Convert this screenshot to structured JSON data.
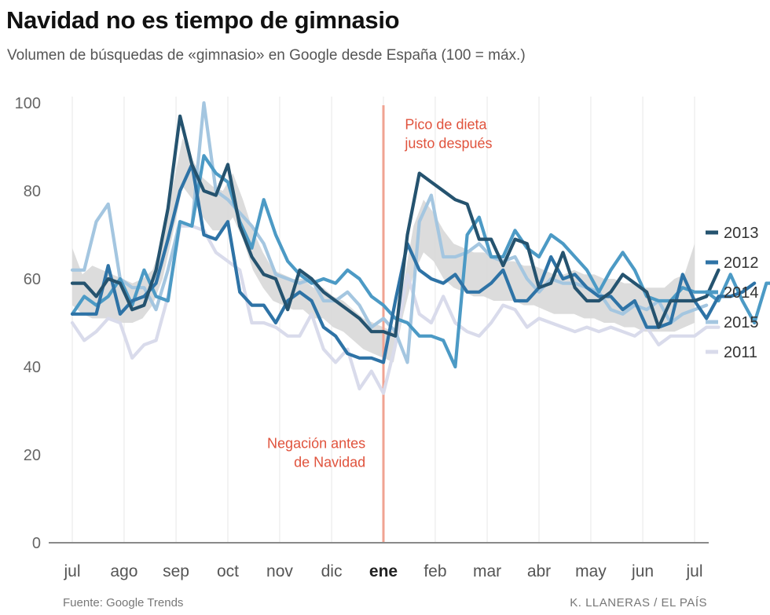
{
  "header": {
    "title": "Navidad no es tiempo de gimnasio",
    "subtitle": "Volumen de búsquedas de «gimnasio» en Google desde España (100 = máx.)"
  },
  "footer": {
    "source": "Fuente: Google Trends",
    "credit": "K. LLANERAS  /  EL PAÍS"
  },
  "chart_data": {
    "type": "line",
    "title": "Navidad no es tiempo de gimnasio",
    "subtitle": "Volumen de búsquedas de «gimnasio» en Google desde España (100 = máx.)",
    "xlabel": "",
    "ylabel": "",
    "xlim": [
      0,
      52
    ],
    "ylim": [
      0,
      100
    ],
    "yticks": [
      0,
      20,
      40,
      60,
      80,
      100
    ],
    "months": [
      {
        "label": "jul",
        "x": 0,
        "bold": false
      },
      {
        "label": "ago",
        "x": 4.33,
        "bold": false
      },
      {
        "label": "sep",
        "x": 8.67,
        "bold": false
      },
      {
        "label": "oct",
        "x": 13,
        "bold": false
      },
      {
        "label": "nov",
        "x": 17.33,
        "bold": false
      },
      {
        "label": "dic",
        "x": 21.67,
        "bold": false
      },
      {
        "label": "ene",
        "x": 26,
        "bold": true
      },
      {
        "label": "feb",
        "x": 30.33,
        "bold": false
      },
      {
        "label": "mar",
        "x": 34.67,
        "bold": false
      },
      {
        "label": "abr",
        "x": 39,
        "bold": false
      },
      {
        "label": "may",
        "x": 43.33,
        "bold": false
      },
      {
        "label": "jun",
        "x": 47.67,
        "bold": false
      },
      {
        "label": "jul",
        "x": 52,
        "bold": false
      }
    ],
    "marker": {
      "x": 26
    },
    "annotations": [
      {
        "lines": [
          "Pico de dieta",
          "justo después"
        ],
        "x": 27.8,
        "y": 94,
        "anchor": "start"
      },
      {
        "lines": [
          "Negación antes",
          "de Navidad"
        ],
        "x": 24.5,
        "y": 21.5,
        "anchor": "end"
      }
    ],
    "band": {
      "start": 0,
      "upper": [
        67,
        61,
        63,
        62,
        61,
        60,
        59,
        60,
        62,
        69,
        81,
        92,
        87,
        83,
        81,
        80,
        84,
        78,
        71,
        66,
        62,
        61,
        60,
        60,
        58,
        58,
        56,
        55,
        53,
        51,
        50,
        49,
        48,
        59,
        72,
        78,
        75,
        71,
        68,
        67,
        66,
        66,
        65,
        64,
        64,
        63,
        63,
        62,
        61,
        61,
        62,
        61,
        61,
        60,
        60,
        59,
        59,
        58,
        58,
        58,
        60,
        61,
        68
      ],
      "lower": [
        54,
        52,
        51,
        51,
        51,
        50,
        50,
        51,
        54,
        60,
        70,
        81,
        78,
        74,
        71,
        71,
        74,
        69,
        62,
        58,
        55,
        54,
        53,
        53,
        51,
        51,
        49,
        48,
        46,
        44,
        43,
        42,
        41,
        52,
        61,
        66,
        64,
        60,
        58,
        57,
        56,
        56,
        55,
        55,
        55,
        54,
        54,
        53,
        52,
        52,
        52,
        51,
        51,
        50,
        50,
        49,
        49,
        48,
        48,
        48,
        48,
        49,
        50
      ]
    },
    "series": [
      {
        "name": "2011",
        "color": "#d9dbeb",
        "start": 0,
        "values": [
          50,
          46,
          48,
          51,
          50,
          42,
          45,
          46,
          56,
          72,
          72,
          71,
          66,
          64,
          62,
          50,
          50,
          49,
          47,
          47,
          52,
          44,
          41,
          44,
          35,
          39,
          34,
          45,
          61,
          52,
          50,
          56,
          50,
          48,
          47,
          50,
          54,
          53,
          49,
          51,
          50,
          49,
          48,
          49,
          48,
          49,
          48,
          47,
          49,
          45,
          47,
          47,
          47,
          49,
          49
        ]
      },
      {
        "name": "2015",
        "color": "#a4c6e0",
        "start": 0,
        "values": [
          62,
          62,
          73,
          77,
          60,
          58,
          58,
          53,
          62,
          73,
          72,
          100,
          80,
          78,
          75,
          72,
          68,
          61,
          60,
          59,
          60,
          55,
          55,
          57,
          54,
          49,
          51,
          48,
          41,
          73,
          79,
          65,
          65,
          66,
          68,
          65,
          64,
          65,
          60,
          57,
          60,
          59,
          59,
          58,
          57,
          53,
          52,
          54,
          53,
          55,
          50,
          52,
          53,
          54
        ]
      },
      {
        "name": "2014",
        "color": "#4c9ac5",
        "start": 0,
        "values": [
          52,
          56,
          54,
          56,
          60,
          54,
          62,
          56,
          55,
          73,
          72,
          88,
          84,
          82,
          73,
          67,
          78,
          70,
          64,
          61,
          59,
          60,
          59,
          62,
          60,
          56,
          54,
          51,
          50,
          47,
          47,
          46,
          40,
          70,
          74,
          65,
          65,
          71,
          67,
          65,
          70,
          68,
          65,
          62,
          57,
          62,
          66,
          62,
          56,
          55,
          55,
          58,
          57,
          57,
          55,
          61,
          55,
          50,
          59,
          59
        ]
      },
      {
        "name": "2012",
        "color": "#2e73a6",
        "start": 0,
        "values": [
          52,
          52,
          52,
          63,
          52,
          55,
          56,
          59,
          69,
          80,
          86,
          70,
          69,
          73,
          57,
          54,
          54,
          50,
          55,
          57,
          55,
          49,
          47,
          43,
          42,
          42,
          41,
          55,
          68,
          62,
          60,
          59,
          61,
          57,
          57,
          59,
          62,
          55,
          55,
          58,
          65,
          60,
          61,
          58,
          56,
          56,
          53,
          55,
          49,
          49,
          50,
          61,
          55,
          51,
          56,
          56,
          57,
          59
        ]
      },
      {
        "name": "2013",
        "color": "#25536f",
        "start": 0,
        "values": [
          59,
          59,
          56,
          60,
          59,
          53,
          54,
          62,
          76,
          97,
          86,
          80,
          79,
          86,
          72,
          65,
          61,
          60,
          53,
          62,
          60,
          57,
          55,
          53,
          51,
          48,
          48,
          47,
          70,
          84,
          82,
          80,
          78,
          77,
          69,
          69,
          63,
          69,
          68,
          58,
          59,
          66,
          58,
          55,
          55,
          57,
          61,
          59,
          57,
          49,
          55,
          55,
          55,
          56,
          62
        ]
      }
    ]
  }
}
